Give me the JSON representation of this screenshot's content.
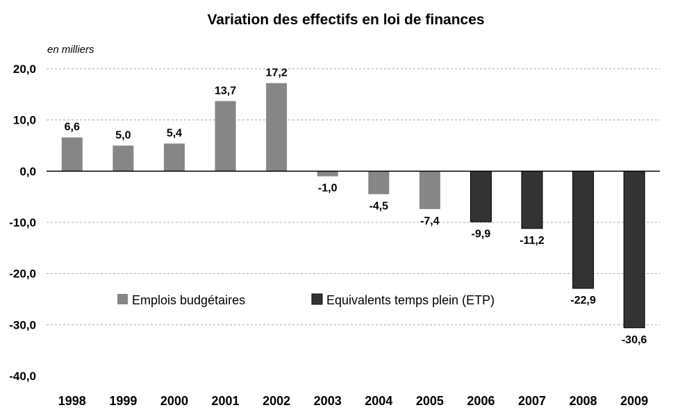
{
  "chart_data": {
    "type": "bar",
    "title": "Variation des effectifs en loi de finances",
    "unit_label": "en milliers",
    "xlabel": "",
    "ylabel": "",
    "ylim": [
      -40,
      20
    ],
    "yticks": [
      20,
      10,
      0,
      -10,
      -20,
      -30,
      -40
    ],
    "ytick_labels": [
      "20,0",
      "10,0",
      "0,0",
      "-10,0",
      "-20,0",
      "-30,0",
      "-40,0"
    ],
    "grid": true,
    "legend_position": "center-bottom-inside",
    "categories": [
      "1998",
      "1999",
      "2000",
      "2001",
      "2002",
      "2003",
      "2004",
      "2005",
      "2006",
      "2007",
      "2008",
      "2009"
    ],
    "values": [
      6.6,
      5.0,
      5.4,
      13.7,
      17.2,
      -1.0,
      -4.5,
      -7.4,
      -9.9,
      -11.2,
      -22.9,
      -30.6
    ],
    "value_labels": [
      "6,6",
      "5,0",
      "5,4",
      "13,7",
      "17,2",
      "-1,0",
      "-4,5",
      "-7,4",
      "-9,9",
      "-11,2",
      "-22,9",
      "-30,6"
    ],
    "series_of_category": [
      0,
      0,
      0,
      0,
      0,
      0,
      0,
      0,
      1,
      1,
      1,
      1
    ],
    "series": [
      {
        "name": "Emplois budgétaires",
        "color": "#868686",
        "categories": [
          "1998",
          "1999",
          "2000",
          "2001",
          "2002",
          "2003",
          "2004",
          "2005"
        ],
        "values": [
          6.6,
          5.0,
          5.4,
          13.7,
          17.2,
          -1.0,
          -4.5,
          -7.4
        ]
      },
      {
        "name": "Equivalents temps plein (ETP)",
        "color": "#333333",
        "categories": [
          "2006",
          "2007",
          "2008",
          "2009"
        ],
        "values": [
          -9.9,
          -11.2,
          -22.9,
          -30.6
        ]
      }
    ]
  }
}
